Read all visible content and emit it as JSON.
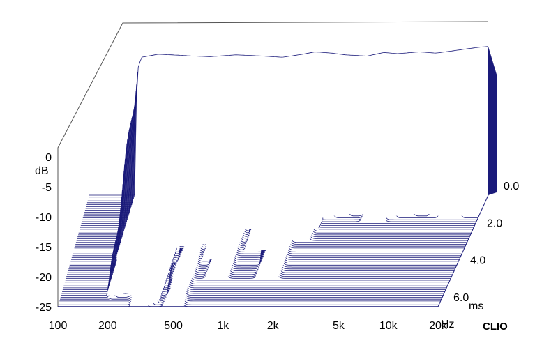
{
  "chart_data": {
    "type": "waterfall",
    "title": "",
    "xlabel": "",
    "ylabel": "",
    "x_unit": "Hz",
    "y_unit": "dB",
    "z_unit": "ms",
    "x_scale": "log",
    "x_range": [
      100,
      20000
    ],
    "y_range": [
      -25,
      0
    ],
    "time_range": [
      0,
      6.0
    ],
    "x_ticks": [
      "100",
      "200",
      "500",
      "1k",
      "2k",
      "5k",
      "10k",
      "20k"
    ],
    "x_tick_values": [
      100,
      200,
      500,
      1000,
      2000,
      5000,
      10000,
      20000
    ],
    "y_ticks": [
      "0",
      "-5",
      "-10",
      "-15",
      "-20",
      "-25"
    ],
    "y_tick_values": [
      0,
      -5,
      -10,
      -15,
      -20,
      -25
    ],
    "time_ticks": [
      "0.0",
      "2.0",
      "4.0",
      "6.0"
    ],
    "time_tick_values": [
      0,
      2.0,
      4.0,
      6.0
    ],
    "slice_count": 60,
    "initial_response": {
      "freq_hz": [
        180,
        190,
        200,
        250,
        300,
        400,
        500,
        700,
        1000,
        1300,
        1700,
        2000,
        2500,
        3000,
        4000,
        5000,
        6000,
        8000,
        10000,
        12000,
        15000,
        18000,
        20000
      ],
      "db": [
        -22,
        -4,
        -2,
        -1.5,
        -1.6,
        -1.8,
        -1.9,
        -1.6,
        -1.8,
        -2.0,
        -1.5,
        -1.1,
        -1.3,
        -1.6,
        -1.8,
        -1.2,
        -1.4,
        -1.1,
        -1.3,
        -1.0,
        -0.6,
        -0.3,
        -0.2
      ]
    },
    "decay_features": [
      {
        "freq_hz": 500,
        "peak_db": -20,
        "end_ms": 6.0
      },
      {
        "freq_hz": 700,
        "peak_db": -12,
        "end_ms": 3.5
      },
      {
        "freq_hz": 800,
        "peak_db": -14,
        "end_ms": 4.5
      },
      {
        "freq_hz": 1200,
        "peak_db": -9,
        "end_ms": 3.0
      },
      {
        "freq_hz": 1600,
        "peak_db": -13,
        "end_ms": 4.5
      },
      {
        "freq_hz": 2000,
        "peak_db": -7,
        "end_ms": 2.5
      },
      {
        "freq_hz": 5000,
        "peak_db": -6,
        "end_ms": 1.5
      }
    ],
    "floor_db": -25,
    "line_color": "#1a1a7a",
    "frame_color": "#555555"
  },
  "labels": {
    "db_unit": "dB",
    "hz_unit": "Hz",
    "ms_unit": "ms",
    "brand": "CLIO"
  }
}
